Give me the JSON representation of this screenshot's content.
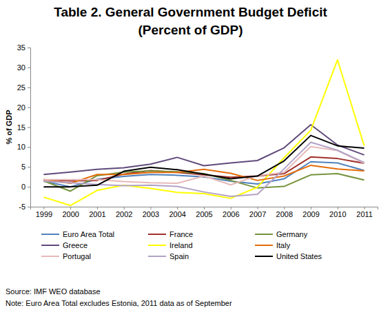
{
  "chart_data": {
    "type": "line",
    "title": "Table 2. General Government Budget Deficit",
    "subtitle": "(Percent of GDP)",
    "y_label": "% of GDP",
    "annotations": [
      "Source: IMF WEO database",
      "Note: Euro Area Total excludes Estonia, 2011 data as of September"
    ],
    "categories": [
      "1999",
      "2000",
      "2001",
      "2002",
      "2003",
      "2004",
      "2005",
      "2006",
      "2007",
      "2008",
      "2009",
      "2010",
      "2011"
    ],
    "ylim": [
      -5,
      35
    ],
    "yticks": [
      -5,
      0,
      5,
      10,
      15,
      20,
      25,
      30,
      35
    ],
    "grid": false,
    "legend": "bottom",
    "series": [
      {
        "name": "Euro Area Total",
        "color": "#4f81bd",
        "values": [
          1.4,
          0.0,
          1.9,
          2.6,
          3.1,
          2.9,
          2.5,
          1.4,
          0.7,
          2.0,
          6.3,
          6.0,
          4.1
        ]
      },
      {
        "name": "France",
        "color": "#a0302c",
        "values": [
          1.8,
          1.5,
          1.6,
          3.2,
          4.1,
          3.6,
          3.0,
          2.4,
          2.7,
          3.3,
          7.5,
          7.1,
          5.9
        ]
      },
      {
        "name": "Germany",
        "color": "#77933c",
        "values": [
          1.5,
          -1.1,
          2.8,
          3.7,
          4.0,
          3.8,
          3.3,
          1.6,
          -0.3,
          0.1,
          3.0,
          3.3,
          1.7
        ]
      },
      {
        "name": "Greece",
        "color": "#604a7b",
        "values": [
          3.1,
          3.7,
          4.4,
          4.8,
          5.7,
          7.4,
          5.3,
          6.0,
          6.6,
          9.8,
          15.6,
          10.5,
          8.0
        ]
      },
      {
        "name": "Ireland",
        "color": "#ffff00",
        "values": [
          -2.6,
          -4.7,
          -0.9,
          0.4,
          -0.4,
          -1.4,
          -1.7,
          -2.9,
          -0.1,
          7.3,
          14.2,
          31.9,
          10.3
        ]
      },
      {
        "name": "Italy",
        "color": "#e46c0a",
        "values": [
          1.8,
          0.9,
          3.1,
          3.1,
          3.6,
          3.6,
          4.4,
          3.4,
          1.6,
          2.7,
          5.4,
          4.5,
          4.0
        ]
      },
      {
        "name": "Portugal",
        "color": "#e6b9b8",
        "values": [
          1.8,
          1.8,
          1.8,
          1.3,
          1.0,
          0.9,
          2.7,
          0.5,
          2.8,
          3.6,
          10.1,
          9.1,
          5.9
        ]
      },
      {
        "name": "Spain",
        "color": "#b3a2c7",
        "values": [
          1.4,
          1.0,
          0.6,
          0.3,
          0.4,
          0.1,
          -1.3,
          -2.4,
          -1.9,
          4.5,
          11.2,
          9.2,
          6.1
        ]
      },
      {
        "name": "United States",
        "color": "#000000",
        "values": [
          0.0,
          0.0,
          0.4,
          3.9,
          4.9,
          4.3,
          3.2,
          2.0,
          2.7,
          6.5,
          12.9,
          10.3,
          9.7
        ]
      }
    ]
  }
}
